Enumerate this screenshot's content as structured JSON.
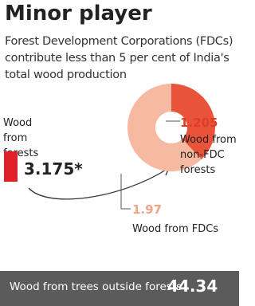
{
  "header": {
    "title": "Minor player",
    "subtitle": "Forest Development Corporations (FDCs) contribute less than 5 per cent of India's total wood production"
  },
  "chart_data": {
    "type": "pie",
    "donut": true,
    "categories": [
      "Wood from non-FDC forests",
      "Wood from FDCs"
    ],
    "values": [
      1.205,
      1.97
    ],
    "colors": [
      "#e8533a",
      "#f6b9a2"
    ],
    "label_colors": [
      "#e03c28",
      "#f0a486"
    ]
  },
  "forests": {
    "label": "Wood from forests",
    "value": 3.175,
    "value_label": "3.175*",
    "color": "#e0202a"
  },
  "footer": {
    "label": "Wood from trees outside forests",
    "value": 44.34
  }
}
